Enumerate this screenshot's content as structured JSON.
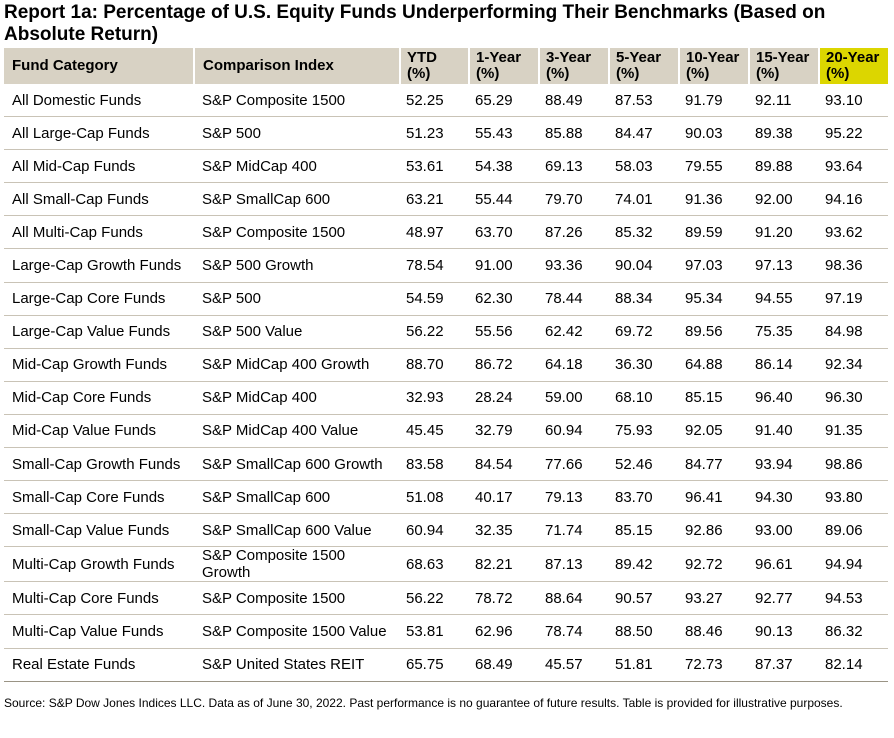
{
  "report": {
    "title": "Report 1a: Percentage of U.S. Equity Funds Underperforming Their Benchmarks (Based on Absolute Return)",
    "footnote": "Source: S&P Dow Jones Indices LLC.  Data as of June 30, 2022.  Past performance is no guarantee of future results.  Table is provided for illustrative purposes."
  },
  "colors": {
    "header_bg": "#d8d2c4",
    "highlight_bg": "#dcd600",
    "row_rule": "#c9c3b6"
  },
  "table": {
    "headers": {
      "category": "Fund Category",
      "index": "Comparison Index",
      "ytd": "YTD (%)",
      "y1": "1-Year (%)",
      "y3": "3-Year (%)",
      "y5": "5-Year (%)",
      "y10": "10-Year (%)",
      "y15": "15-Year (%)",
      "y20": "20-Year (%)"
    },
    "rows": [
      {
        "category": "All Domestic Funds",
        "index": "S&P Composite 1500",
        "ytd": "52.25",
        "y1": "65.29",
        "y3": "88.49",
        "y5": "87.53",
        "y10": "91.79",
        "y15": "92.11",
        "y20": "93.10"
      },
      {
        "category": "All Large-Cap Funds",
        "index": "S&P 500",
        "ytd": "51.23",
        "y1": "55.43",
        "y3": "85.88",
        "y5": "84.47",
        "y10": "90.03",
        "y15": "89.38",
        "y20": "95.22"
      },
      {
        "category": "All Mid-Cap Funds",
        "index": "S&P MidCap 400",
        "ytd": "53.61",
        "y1": "54.38",
        "y3": "69.13",
        "y5": "58.03",
        "y10": "79.55",
        "y15": "89.88",
        "y20": "93.64"
      },
      {
        "category": "All Small-Cap Funds",
        "index": "S&P SmallCap 600",
        "ytd": "63.21",
        "y1": "55.44",
        "y3": "79.70",
        "y5": "74.01",
        "y10": "91.36",
        "y15": "92.00",
        "y20": "94.16"
      },
      {
        "category": "All Multi-Cap Funds",
        "index": "S&P Composite 1500",
        "ytd": "48.97",
        "y1": "63.70",
        "y3": "87.26",
        "y5": "85.32",
        "y10": "89.59",
        "y15": "91.20",
        "y20": "93.62"
      },
      {
        "category": "Large-Cap Growth Funds",
        "index": "S&P 500 Growth",
        "ytd": "78.54",
        "y1": "91.00",
        "y3": "93.36",
        "y5": "90.04",
        "y10": "97.03",
        "y15": "97.13",
        "y20": "98.36"
      },
      {
        "category": "Large-Cap Core Funds",
        "index": "S&P 500",
        "ytd": "54.59",
        "y1": "62.30",
        "y3": "78.44",
        "y5": "88.34",
        "y10": "95.34",
        "y15": "94.55",
        "y20": "97.19"
      },
      {
        "category": "Large-Cap Value Funds",
        "index": "S&P 500 Value",
        "ytd": "56.22",
        "y1": "55.56",
        "y3": "62.42",
        "y5": "69.72",
        "y10": "89.56",
        "y15": "75.35",
        "y20": "84.98"
      },
      {
        "category": "Mid-Cap Growth Funds",
        "index": "S&P MidCap 400 Growth",
        "ytd": "88.70",
        "y1": "86.72",
        "y3": "64.18",
        "y5": "36.30",
        "y10": "64.88",
        "y15": "86.14",
        "y20": "92.34"
      },
      {
        "category": "Mid-Cap Core Funds",
        "index": "S&P MidCap 400",
        "ytd": "32.93",
        "y1": "28.24",
        "y3": "59.00",
        "y5": "68.10",
        "y10": "85.15",
        "y15": "96.40",
        "y20": "96.30"
      },
      {
        "category": "Mid-Cap Value Funds",
        "index": "S&P MidCap 400 Value",
        "ytd": "45.45",
        "y1": "32.79",
        "y3": "60.94",
        "y5": "75.93",
        "y10": "92.05",
        "y15": "91.40",
        "y20": "91.35"
      },
      {
        "category": "Small-Cap Growth Funds",
        "index": "S&P SmallCap 600 Growth",
        "ytd": "83.58",
        "y1": "84.54",
        "y3": "77.66",
        "y5": "52.46",
        "y10": "84.77",
        "y15": "93.94",
        "y20": "98.86"
      },
      {
        "category": "Small-Cap Core Funds",
        "index": "S&P SmallCap 600",
        "ytd": "51.08",
        "y1": "40.17",
        "y3": "79.13",
        "y5": "83.70",
        "y10": "96.41",
        "y15": "94.30",
        "y20": "93.80"
      },
      {
        "category": "Small-Cap Value Funds",
        "index": "S&P SmallCap 600 Value",
        "ytd": "60.94",
        "y1": "32.35",
        "y3": "71.74",
        "y5": "85.15",
        "y10": "92.86",
        "y15": "93.00",
        "y20": "89.06"
      },
      {
        "category": "Multi-Cap Growth Funds",
        "index": "S&P Composite 1500 Growth",
        "ytd": "68.63",
        "y1": "82.21",
        "y3": "87.13",
        "y5": "89.42",
        "y10": "92.72",
        "y15": "96.61",
        "y20": "94.94"
      },
      {
        "category": "Multi-Cap Core Funds",
        "index": "S&P Composite 1500",
        "ytd": "56.22",
        "y1": "78.72",
        "y3": "88.64",
        "y5": "90.57",
        "y10": "93.27",
        "y15": "92.77",
        "y20": "94.53"
      },
      {
        "category": "Multi-Cap Value Funds",
        "index": "S&P Composite 1500 Value",
        "ytd": "53.81",
        "y1": "62.96",
        "y3": "78.74",
        "y5": "88.50",
        "y10": "88.46",
        "y15": "90.13",
        "y20": "86.32"
      },
      {
        "category": "Real Estate Funds",
        "index": "S&P United States REIT",
        "ytd": "65.75",
        "y1": "68.49",
        "y3": "45.57",
        "y5": "51.81",
        "y10": "72.73",
        "y15": "87.37",
        "y20": "82.14"
      }
    ]
  }
}
